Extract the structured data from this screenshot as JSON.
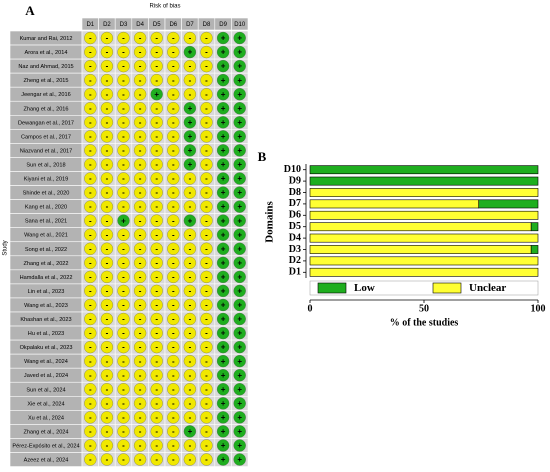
{
  "panel_a": {
    "label": "A",
    "title": "Risk of bias",
    "y_label": "Study",
    "columns": [
      "D1",
      "D2",
      "D3",
      "D4",
      "D5",
      "D6",
      "D7",
      "D8",
      "D9",
      "D10"
    ],
    "symbol_colors": {
      "+": "#1fae1f",
      "-": "#f0e800"
    },
    "rows": [
      {
        "study": "Kumar and Rai, 2012",
        "judgments": [
          "-",
          "-",
          "-",
          "-",
          "-",
          "-",
          "-",
          "-",
          "+",
          "+"
        ]
      },
      {
        "study": "Arora et al., 2014",
        "judgments": [
          "-",
          "-",
          "-",
          "-",
          "-",
          "-",
          "+",
          "-",
          "+",
          "+"
        ]
      },
      {
        "study": "Naz and Ahmad, 2015",
        "judgments": [
          "-",
          "-",
          "-",
          "-",
          "-",
          "-",
          "-",
          "-",
          "+",
          "+"
        ]
      },
      {
        "study": "Zheng et al., 2015",
        "judgments": [
          "-",
          "-",
          "-",
          "-",
          "-",
          "-",
          "-",
          "-",
          "+",
          "+"
        ]
      },
      {
        "study": "Jeengar et al., 2016",
        "judgments": [
          "-",
          "-",
          "-",
          "-",
          "+",
          "-",
          "-",
          "-",
          "+",
          "+"
        ]
      },
      {
        "study": "Zhang et al., 2016",
        "judgments": [
          "-",
          "-",
          "-",
          "-",
          "-",
          "-",
          "+",
          "-",
          "+",
          "+"
        ]
      },
      {
        "study": "Dewangan et al., 2017",
        "judgments": [
          "-",
          "-",
          "-",
          "-",
          "-",
          "-",
          "+",
          "-",
          "+",
          "+"
        ]
      },
      {
        "study": "Campos et al., 2017",
        "judgments": [
          "-",
          "-",
          "-",
          "-",
          "-",
          "-",
          "+",
          "-",
          "+",
          "+"
        ]
      },
      {
        "study": "Niazvand et al., 2017",
        "judgments": [
          "-",
          "-",
          "-",
          "-",
          "-",
          "-",
          "+",
          "-",
          "+",
          "+"
        ]
      },
      {
        "study": "Sun et al., 2018",
        "judgments": [
          "-",
          "-",
          "-",
          "-",
          "-",
          "-",
          "+",
          "-",
          "+",
          "+"
        ]
      },
      {
        "study": "Kiyani et al., 2019",
        "judgments": [
          "-",
          "-",
          "-",
          "-",
          "-",
          "-",
          "-",
          "-",
          "+",
          "+"
        ]
      },
      {
        "study": "Shinde et al., 2020",
        "judgments": [
          "-",
          "-",
          "-",
          "-",
          "-",
          "-",
          "-",
          "-",
          "+",
          "+"
        ]
      },
      {
        "study": "Kang et al., 2020",
        "judgments": [
          "-",
          "-",
          "-",
          "-",
          "-",
          "-",
          "-",
          "-",
          "+",
          "+"
        ]
      },
      {
        "study": "Sana et al., 2021",
        "judgments": [
          "-",
          "-",
          "+",
          "-",
          "-",
          "-",
          "+",
          "-",
          "+",
          "+"
        ]
      },
      {
        "study": "Wang et al., 2021",
        "judgments": [
          "-",
          "-",
          "-",
          "-",
          "-",
          "-",
          "-",
          "-",
          "+",
          "+"
        ]
      },
      {
        "study": "Song et al., 2022",
        "judgments": [
          "-",
          "-",
          "-",
          "-",
          "-",
          "-",
          "-",
          "-",
          "+",
          "+"
        ]
      },
      {
        "study": "Zhang et al., 2022",
        "judgments": [
          "-",
          "-",
          "-",
          "-",
          "-",
          "-",
          "-",
          "-",
          "+",
          "+"
        ]
      },
      {
        "study": "Hamdalla et al., 2022",
        "judgments": [
          "-",
          "-",
          "-",
          "-",
          "-",
          "-",
          "-",
          "-",
          "+",
          "+"
        ]
      },
      {
        "study": "Lin et al., 2023",
        "judgments": [
          "-",
          "-",
          "-",
          "-",
          "-",
          "-",
          "-",
          "-",
          "+",
          "+"
        ]
      },
      {
        "study": "Wang et al., 2023",
        "judgments": [
          "-",
          "-",
          "-",
          "-",
          "-",
          "-",
          "-",
          "-",
          "+",
          "+"
        ]
      },
      {
        "study": "Khashan et al., 2023",
        "judgments": [
          "-",
          "-",
          "-",
          "-",
          "-",
          "-",
          "-",
          "-",
          "+",
          "+"
        ]
      },
      {
        "study": "Hu et al., 2023",
        "judgments": [
          "-",
          "-",
          "-",
          "-",
          "-",
          "-",
          "-",
          "-",
          "+",
          "+"
        ]
      },
      {
        "study": "Okpalaku et al., 2023",
        "judgments": [
          "-",
          "-",
          "-",
          "-",
          "-",
          "-",
          "-",
          "-",
          "+",
          "+"
        ]
      },
      {
        "study": "Wang et al., 2024",
        "judgments": [
          "-",
          "-",
          "-",
          "-",
          "-",
          "-",
          "-",
          "-",
          "+",
          "+"
        ]
      },
      {
        "study": "Javed et al., 2024",
        "judgments": [
          "-",
          "-",
          "-",
          "-",
          "-",
          "-",
          "-",
          "-",
          "+",
          "+"
        ]
      },
      {
        "study": "Sun et al., 2024",
        "judgments": [
          "-",
          "-",
          "-",
          "-",
          "-",
          "-",
          "-",
          "-",
          "+",
          "+"
        ]
      },
      {
        "study": "Xie et al., 2024",
        "judgments": [
          "-",
          "-",
          "-",
          "-",
          "-",
          "-",
          "-",
          "-",
          "+",
          "+"
        ]
      },
      {
        "study": "Xu et al., 2024",
        "judgments": [
          "-",
          "-",
          "-",
          "-",
          "-",
          "-",
          "-",
          "-",
          "+",
          "+"
        ]
      },
      {
        "study": "Zhang et al., 2024",
        "judgments": [
          "-",
          "-",
          "-",
          "-",
          "-",
          "-",
          "+",
          "-",
          "+",
          "+"
        ]
      },
      {
        "study": "Pérez-Expósito et al., 2024",
        "judgments": [
          "-",
          "-",
          "-",
          "-",
          "-",
          "-",
          "-",
          "-",
          "+",
          "+"
        ]
      },
      {
        "study": "Azeez et al., 2024",
        "judgments": [
          "-",
          "-",
          "-",
          "-",
          "-",
          "-",
          "-",
          "-",
          "+",
          "+"
        ]
      }
    ]
  },
  "chart_data": {
    "type": "bar",
    "orientation": "horizontal",
    "stacked": true,
    "label": "B",
    "x_label": "% of the studies",
    "y_label": "Domains",
    "categories": [
      "D1",
      "D2",
      "D3",
      "D4",
      "D5",
      "D6",
      "D7",
      "D8",
      "D9",
      "D10"
    ],
    "series": [
      {
        "name": "Low",
        "color": "#1fae1f",
        "values": [
          0,
          0,
          3,
          0,
          3,
          0,
          26,
          0,
          100,
          100
        ]
      },
      {
        "name": "Unclear",
        "color": "#ffff33",
        "values": [
          100,
          100,
          97,
          100,
          97,
          100,
          74,
          100,
          0,
          0
        ]
      }
    ],
    "xlim": [
      0,
      100
    ],
    "xticks": [
      0,
      50,
      100
    ],
    "legend": "bottom"
  }
}
